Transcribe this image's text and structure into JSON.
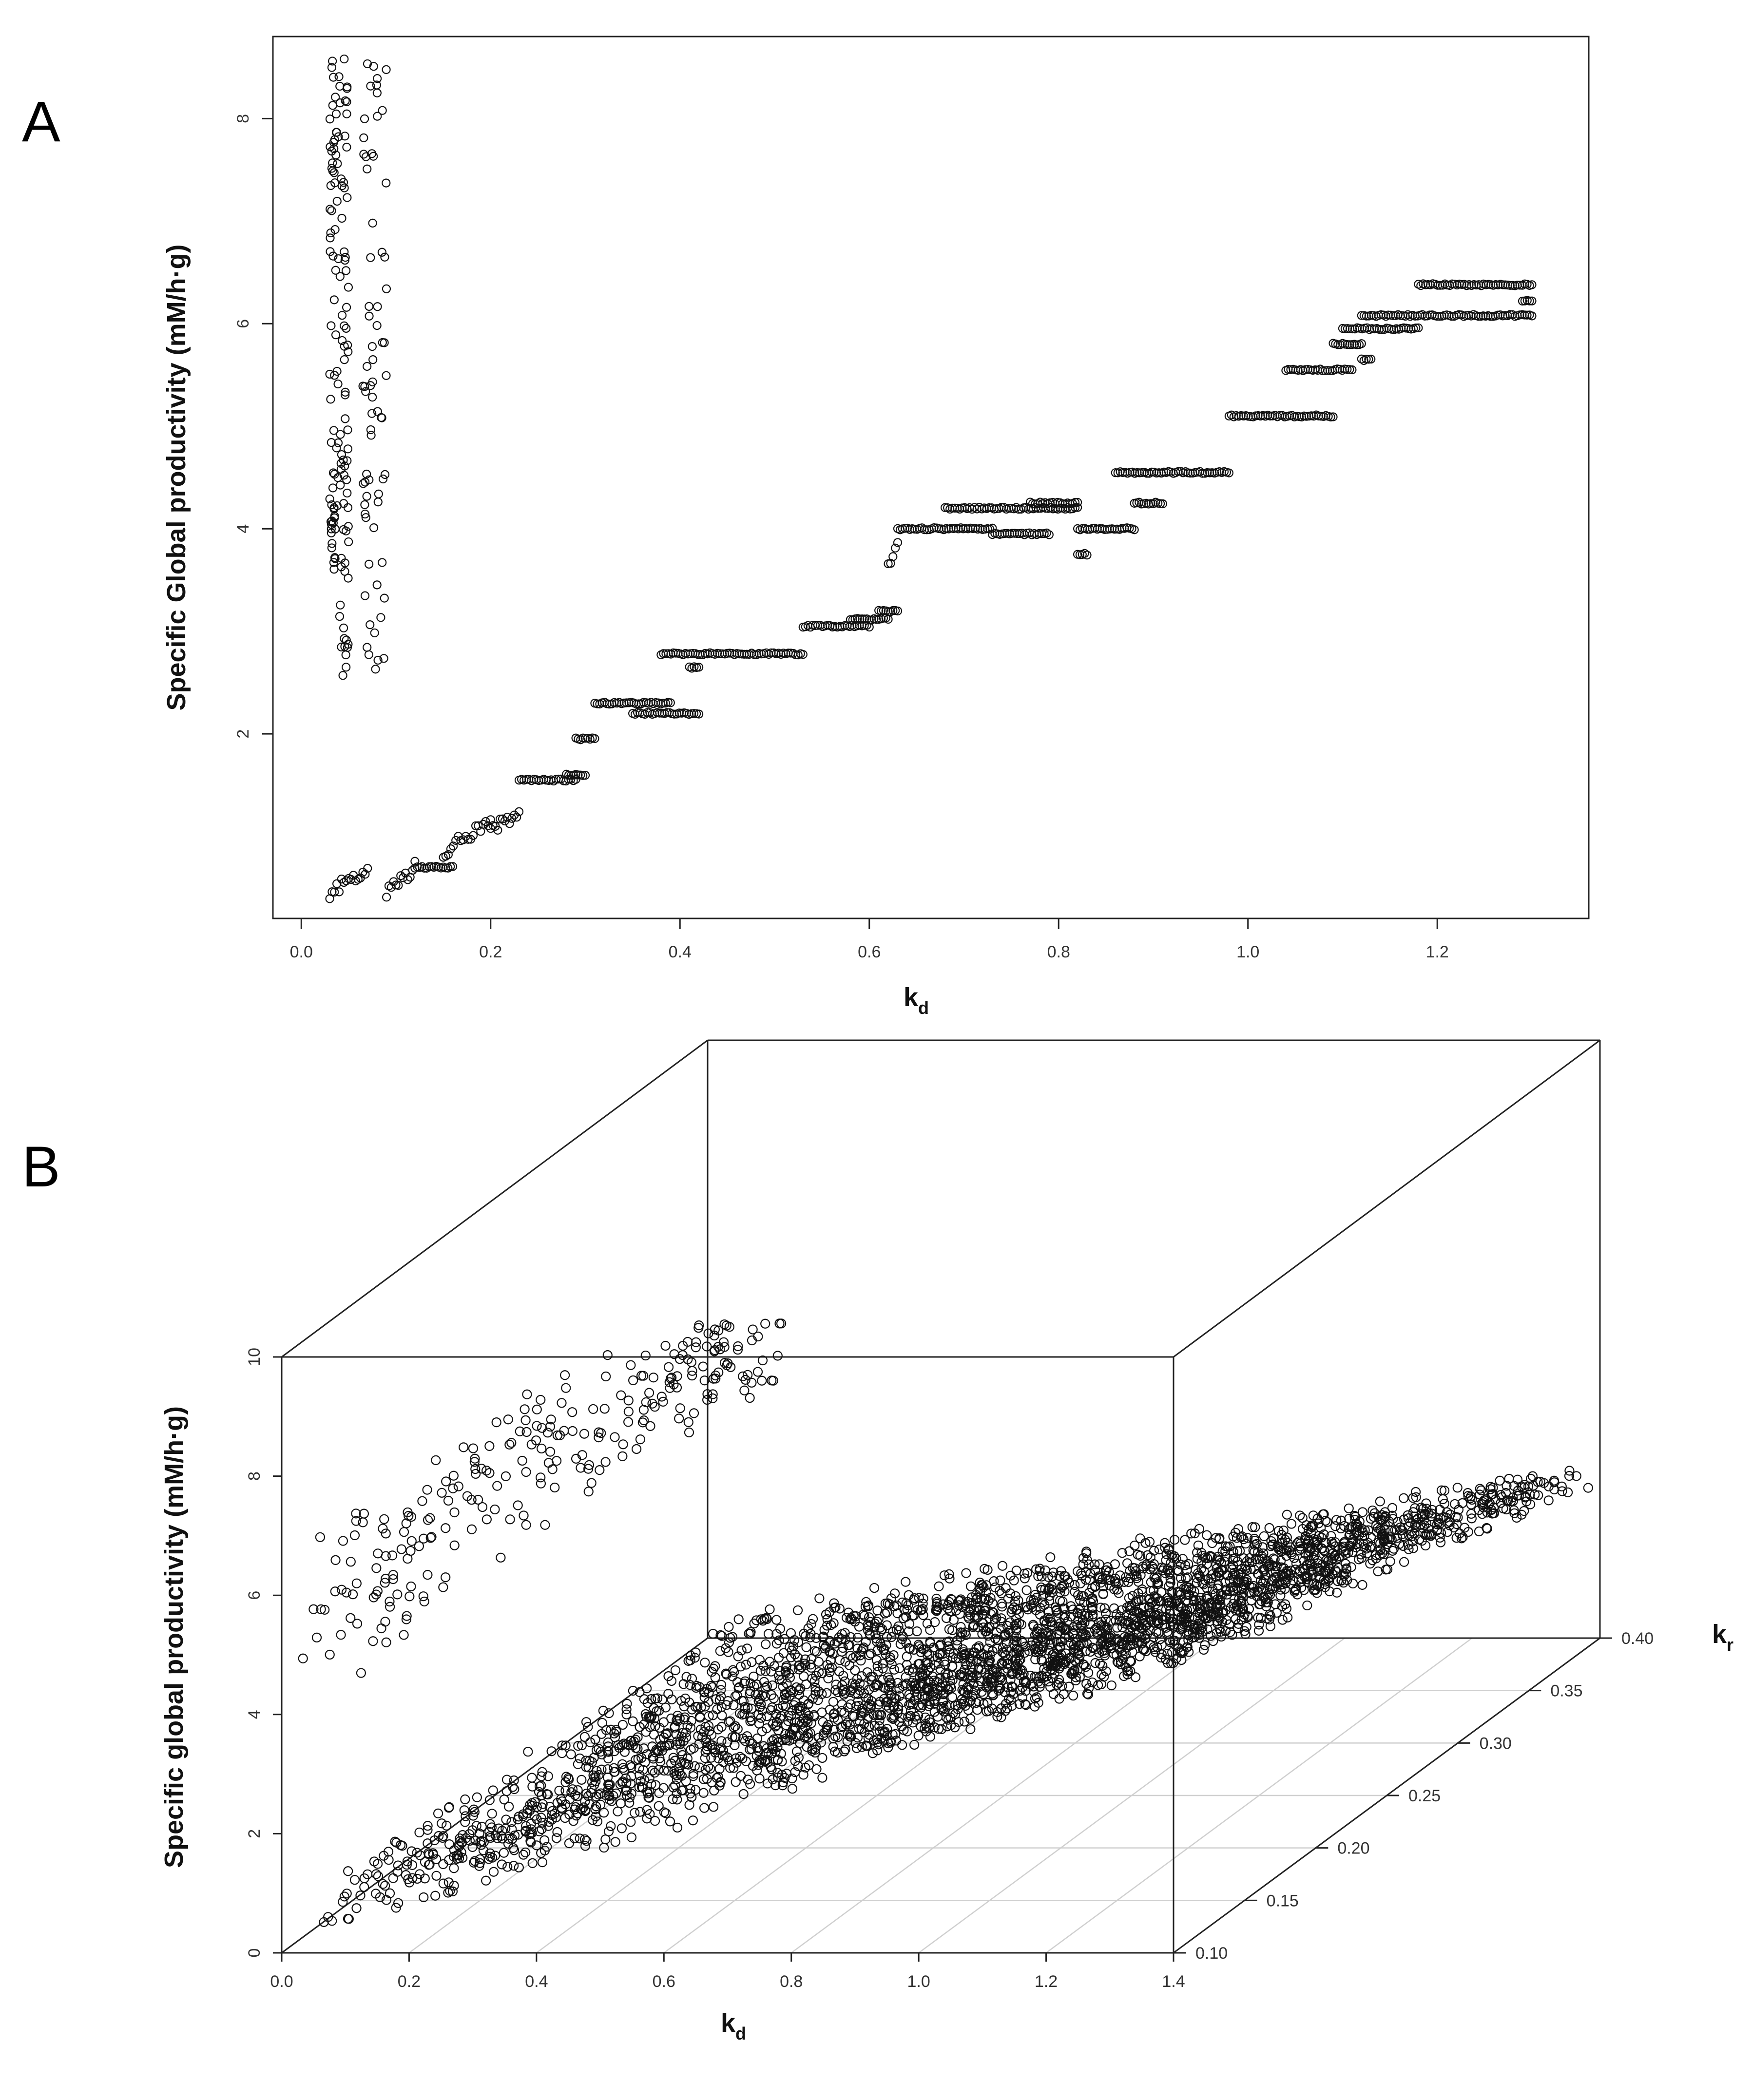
{
  "panels": {
    "a": {
      "letter": "A"
    },
    "b": {
      "letter": "B"
    }
  },
  "chart_data": [
    {
      "type": "scatter",
      "panel": "A",
      "title": "",
      "xlabel": "k",
      "xlabel_sub": "d",
      "ylabel": "Specific Global productivity (mM/h·g)",
      "xlim": [
        -0.03,
        1.36
      ],
      "ylim": [
        0.2,
        8.8
      ],
      "xticks": [
        0.0,
        0.2,
        0.4,
        0.6,
        0.8,
        1.0,
        1.2
      ],
      "xtick_labels": [
        "0.0",
        "0.2",
        "0.4",
        "0.6",
        "0.8",
        "1.0",
        "1.2"
      ],
      "yticks": [
        2,
        4,
        6,
        8
      ],
      "ytick_labels": [
        "2",
        "4",
        "6",
        "8"
      ],
      "grid": false,
      "marker": "open-circle",
      "vertical_bands": [
        {
          "x_from": 0.03,
          "x_to": 0.04,
          "y_from": 3.6,
          "y_to": 8.6
        },
        {
          "x_from": 0.04,
          "x_to": 0.05,
          "y_from": 2.3,
          "y_to": 8.6
        },
        {
          "x_from": 0.065,
          "x_to": 0.09,
          "y_from": 2.6,
          "y_to": 8.6
        }
      ],
      "segments": [
        {
          "x_from": 0.03,
          "x_to": 0.07,
          "y_from": 0.45,
          "y_to": 0.7
        },
        {
          "x_from": 0.09,
          "x_to": 0.12,
          "y_from": 0.45,
          "y_to": 0.7
        },
        {
          "x_from": 0.12,
          "x_to": 0.16,
          "y": 0.7
        },
        {
          "x_from": 0.15,
          "x_to": 0.2,
          "y_from": 0.85,
          "y_to": 1.15
        },
        {
          "x_from": 0.2,
          "x_to": 0.23,
          "y_from": 1.05,
          "y_to": 1.25
        },
        {
          "x_from": 0.23,
          "x_to": 0.29,
          "y": 1.55
        },
        {
          "x_from": 0.28,
          "x_to": 0.3,
          "y": 1.6
        },
        {
          "x_from": 0.29,
          "x_to": 0.31,
          "y": 1.95
        },
        {
          "x_from": 0.31,
          "x_to": 0.39,
          "y": 2.3
        },
        {
          "x_from": 0.35,
          "x_to": 0.42,
          "y": 2.2
        },
        {
          "x_from": 0.38,
          "x_to": 0.53,
          "y": 2.78
        },
        {
          "x_from": 0.41,
          "x_to": 0.42,
          "y": 2.65
        },
        {
          "x_from": 0.53,
          "x_to": 0.6,
          "y": 3.05
        },
        {
          "x_from": 0.58,
          "x_to": 0.62,
          "y": 3.12
        },
        {
          "x_from": 0.61,
          "x_to": 0.63,
          "y": 3.2
        },
        {
          "x_from": 0.62,
          "x_to": 0.63,
          "y_from": 3.6,
          "y_to": 3.85
        },
        {
          "x_from": 0.63,
          "x_to": 0.73,
          "y": 4.0
        },
        {
          "x_from": 0.68,
          "x_to": 0.82,
          "y": 4.2
        },
        {
          "x_from": 0.73,
          "x_to": 0.79,
          "y": 3.95
        },
        {
          "x_from": 0.77,
          "x_to": 0.82,
          "y": 4.25
        },
        {
          "x_from": 0.82,
          "x_to": 0.88,
          "y": 4.0
        },
        {
          "x_from": 0.82,
          "x_to": 0.83,
          "y": 3.75
        },
        {
          "x_from": 0.86,
          "x_to": 0.98,
          "y": 4.55
        },
        {
          "x_from": 0.88,
          "x_to": 0.91,
          "y": 4.25
        },
        {
          "x_from": 0.98,
          "x_to": 1.09,
          "y": 5.1
        },
        {
          "x_from": 1.04,
          "x_to": 1.11,
          "y": 5.55
        },
        {
          "x_from": 1.09,
          "x_to": 1.12,
          "y": 5.8
        },
        {
          "x_from": 1.1,
          "x_to": 1.18,
          "y": 5.95
        },
        {
          "x_from": 1.12,
          "x_to": 1.13,
          "y": 5.65
        },
        {
          "x_from": 1.12,
          "x_to": 1.3,
          "y": 6.08
        },
        {
          "x_from": 1.18,
          "x_to": 1.3,
          "y": 6.38
        },
        {
          "x_from": 1.29,
          "x_to": 1.3,
          "y": 6.22
        }
      ]
    },
    {
      "type": "scatter",
      "projection": "3d",
      "panel": "B",
      "title": "",
      "xlabel": "k",
      "xlabel_sub": "d",
      "ylabel": "k",
      "ylabel_sub": "r",
      "zlabel": "Specific global productivity (mM/h·g)",
      "xlim": [
        0.0,
        1.4
      ],
      "ylim": [
        0.1,
        0.4
      ],
      "zlim": [
        0,
        10
      ],
      "xtick_labels": [
        "0.0",
        "0.2",
        "0.4",
        "0.6",
        "0.8",
        "1.0",
        "1.2",
        "1.4"
      ],
      "ytick_labels": [
        "0.10",
        "0.15",
        "0.20",
        "0.25",
        "0.30",
        "0.35",
        "0.40"
      ],
      "ztick_labels": [
        "0",
        "2",
        "4",
        "6",
        "8",
        "10"
      ],
      "grid": "base plane (kd-kr)",
      "marker": "open-circle",
      "point_groups": [
        {
          "kd_from": 0.02,
          "kd_to": 0.15,
          "kr_from": 0.1,
          "kr_to": 0.4,
          "z_from": 4.0,
          "z_to": 10.0,
          "n": 260
        },
        {
          "kd_from": 0.05,
          "kd_to": 1.4,
          "kr_from": 0.1,
          "kr_to": 0.4,
          "z_from": 0.5,
          "z_to": 6.8,
          "n": 3400
        }
      ]
    }
  ]
}
